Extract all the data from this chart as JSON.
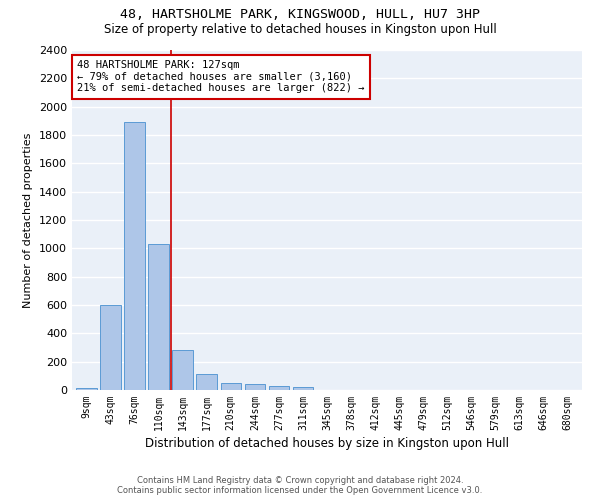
{
  "title_line1": "48, HARTSHOLME PARK, KINGSWOOD, HULL, HU7 3HP",
  "title_line2": "Size of property relative to detached houses in Kingston upon Hull",
  "xlabel": "Distribution of detached houses by size in Kingston upon Hull",
  "ylabel": "Number of detached properties",
  "bar_labels": [
    "9sqm",
    "43sqm",
    "76sqm",
    "110sqm",
    "143sqm",
    "177sqm",
    "210sqm",
    "244sqm",
    "277sqm",
    "311sqm",
    "345sqm",
    "378sqm",
    "412sqm",
    "445sqm",
    "479sqm",
    "512sqm",
    "546sqm",
    "579sqm",
    "613sqm",
    "646sqm",
    "680sqm"
  ],
  "bar_values": [
    15,
    600,
    1890,
    1030,
    280,
    115,
    50,
    40,
    30,
    20,
    0,
    0,
    0,
    0,
    0,
    0,
    0,
    0,
    0,
    0,
    0
  ],
  "bar_color": "#aec6e8",
  "bar_edge_color": "#5b9bd5",
  "vline_color": "#cc0000",
  "annotation_text": "48 HARTSHOLME PARK: 127sqm\n← 79% of detached houses are smaller (3,160)\n21% of semi-detached houses are larger (822) →",
  "annotation_box_color": "#ffffff",
  "annotation_box_edge": "#cc0000",
  "ylim": [
    0,
    2400
  ],
  "yticks": [
    0,
    200,
    400,
    600,
    800,
    1000,
    1200,
    1400,
    1600,
    1800,
    2000,
    2200,
    2400
  ],
  "bg_color": "#eaf0f8",
  "grid_color": "#ffffff",
  "footer_line1": "Contains HM Land Registry data © Crown copyright and database right 2024.",
  "footer_line2": "Contains public sector information licensed under the Open Government Licence v3.0."
}
